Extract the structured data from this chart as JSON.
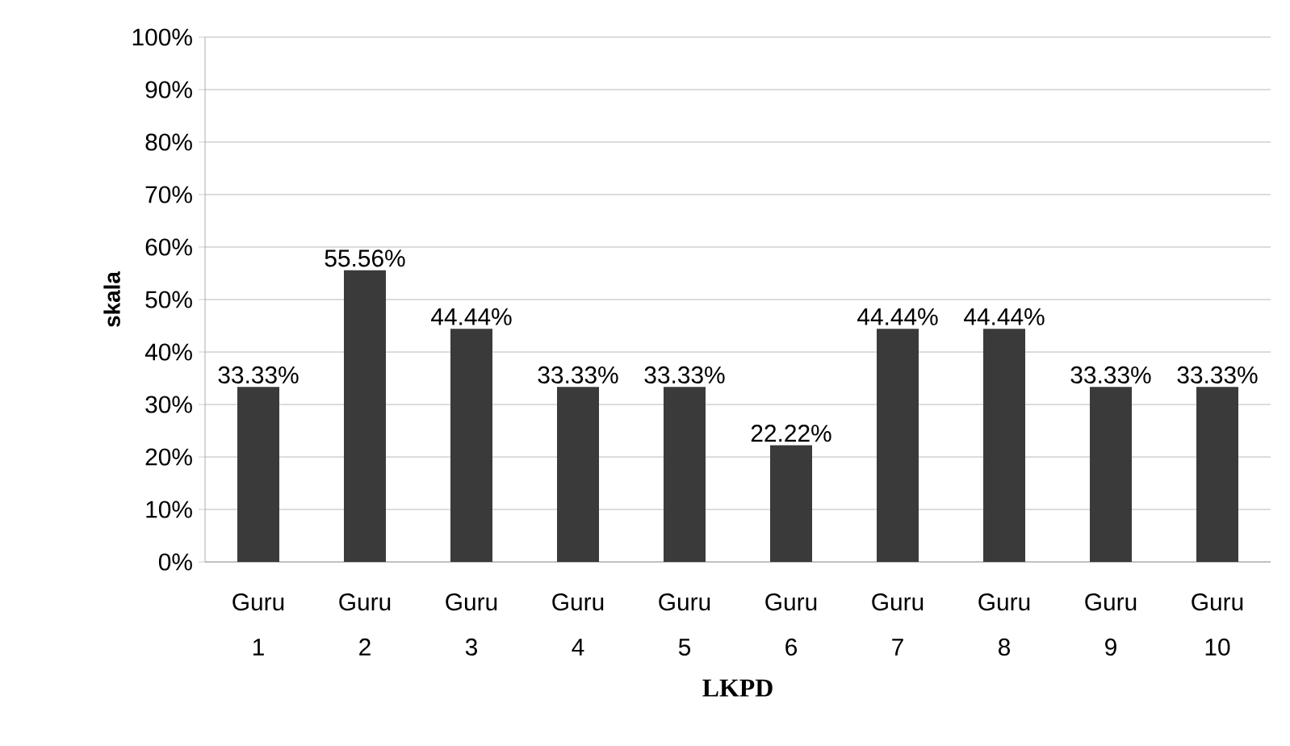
{
  "chart_data": {
    "type": "bar",
    "xlabel": "LKPD",
    "ylabel": "skala",
    "categories": [
      "Guru 1",
      "Guru 2",
      "Guru 3",
      "Guru 4",
      "Guru 5",
      "Guru 6",
      "Guru 7",
      "Guru 8",
      "Guru 9",
      "Guru 10"
    ],
    "values": [
      33.33,
      55.56,
      44.44,
      33.33,
      33.33,
      22.22,
      44.44,
      44.44,
      33.33,
      33.33
    ],
    "value_labels": [
      "33.33%",
      "55.56%",
      "44.44%",
      "33.33%",
      "33.33%",
      "22.22%",
      "44.44%",
      "44.44%",
      "33.33%",
      "33.33%"
    ],
    "color": "#3a3a3a",
    "ylim": [
      0,
      100
    ],
    "yticks": [
      {
        "value": 0,
        "label": "0%"
      },
      {
        "value": 10,
        "label": "10%"
      },
      {
        "value": 20,
        "label": "20%"
      },
      {
        "value": 30,
        "label": "30%"
      },
      {
        "value": 40,
        "label": "40%"
      },
      {
        "value": 50,
        "label": "50%"
      },
      {
        "value": 60,
        "label": "60%"
      },
      {
        "value": 70,
        "label": "70%"
      },
      {
        "value": 80,
        "label": "80%"
      },
      {
        "value": 90,
        "label": "90%"
      },
      {
        "value": 100,
        "label": "100%"
      }
    ],
    "grid": "y"
  }
}
